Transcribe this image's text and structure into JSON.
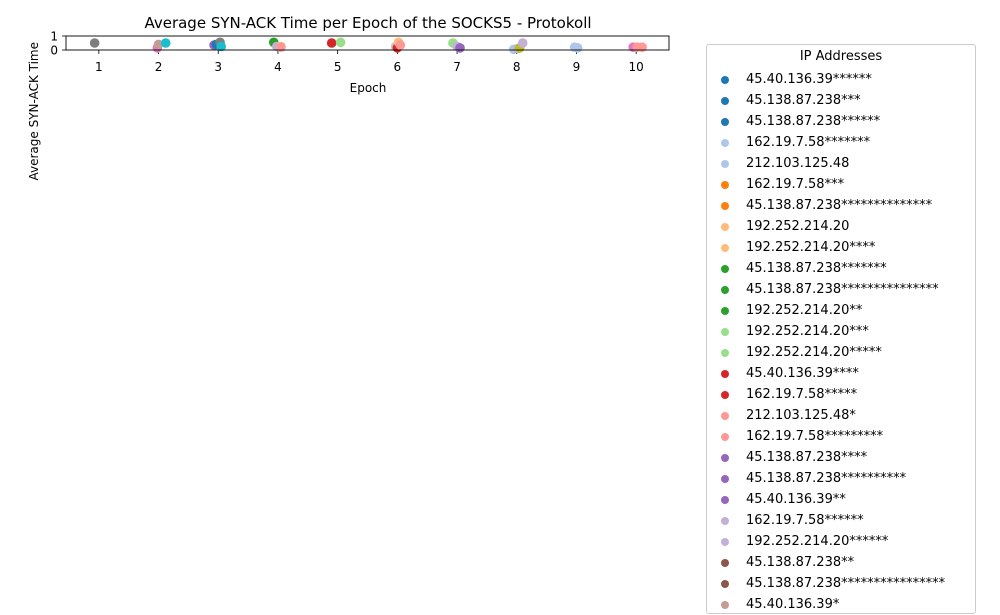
{
  "chart_data": {
    "type": "scatter",
    "title": "Average SYN-ACK Time per Epoch of the SOCKS5 - Protokoll",
    "xlabel": "Epoch",
    "ylabel": "Average SYN-ACK Time",
    "x_ticks": [
      "1",
      "2",
      "3",
      "4",
      "5",
      "6",
      "7",
      "8",
      "9",
      "10"
    ],
    "y_ticks": [
      "0",
      "1"
    ],
    "xlim": [
      0.45,
      10.55
    ],
    "ylim": [
      0,
      1
    ],
    "grid": false,
    "legend": {
      "title": "IP Addresses",
      "placement": "right-outside",
      "entries": [
        {
          "label": "45.40.136.39******",
          "color": "#1f77b4"
        },
        {
          "label": "45.138.87.238***",
          "color": "#1f77b4"
        },
        {
          "label": "45.138.87.238******",
          "color": "#1f77b4"
        },
        {
          "label": "162.19.7.58*******",
          "color": "#aec7e8"
        },
        {
          "label": "212.103.125.48",
          "color": "#aec7e8"
        },
        {
          "label": "162.19.7.58***",
          "color": "#ff7f0e"
        },
        {
          "label": "45.138.87.238**************",
          "color": "#ff7f0e"
        },
        {
          "label": "192.252.214.20",
          "color": "#ffbb78"
        },
        {
          "label": "192.252.214.20****",
          "color": "#ffbb78"
        },
        {
          "label": "45.138.87.238*******",
          "color": "#2ca02c"
        },
        {
          "label": "45.138.87.238***************",
          "color": "#2ca02c"
        },
        {
          "label": "192.252.214.20**",
          "color": "#2ca02c"
        },
        {
          "label": "192.252.214.20***",
          "color": "#98df8a"
        },
        {
          "label": "192.252.214.20*****",
          "color": "#98df8a"
        },
        {
          "label": "45.40.136.39****",
          "color": "#d62728"
        },
        {
          "label": "162.19.7.58*****",
          "color": "#d62728"
        },
        {
          "label": "212.103.125.48*",
          "color": "#ff9896"
        },
        {
          "label": "162.19.7.58*********",
          "color": "#ff9896"
        },
        {
          "label": "45.138.87.238****",
          "color": "#9467bd"
        },
        {
          "label": "45.138.87.238**********",
          "color": "#9467bd"
        },
        {
          "label": "45.40.136.39**",
          "color": "#9467bd"
        },
        {
          "label": "162.19.7.58******",
          "color": "#c5b0d5"
        },
        {
          "label": "192.252.214.20******",
          "color": "#c5b0d5"
        },
        {
          "label": "45.138.87.238**",
          "color": "#8c564b"
        },
        {
          "label": "45.138.87.238****************",
          "color": "#8c564b"
        },
        {
          "label": "45.40.136.39*",
          "color": "#c49c94"
        }
      ]
    },
    "points": [
      {
        "x": 0.93,
        "y": 0.5,
        "color": "#7f7f7f"
      },
      {
        "x": 1.98,
        "y": 0.15,
        "color": "#e377c2"
      },
      {
        "x": 2.0,
        "y": 0.4,
        "color": "#c49c94"
      },
      {
        "x": 2.12,
        "y": 0.5,
        "color": "#17becf"
      },
      {
        "x": 2.93,
        "y": 0.35,
        "color": "#9467bd"
      },
      {
        "x": 2.97,
        "y": 0.4,
        "color": "#1f77b4"
      },
      {
        "x": 3.03,
        "y": 0.55,
        "color": "#7f7f7f"
      },
      {
        "x": 3.05,
        "y": 0.25,
        "color": "#17becf"
      },
      {
        "x": 3.93,
        "y": 0.55,
        "color": "#2ca02c"
      },
      {
        "x": 3.98,
        "y": 0.25,
        "color": "#c5b0d5"
      },
      {
        "x": 4.05,
        "y": 0.25,
        "color": "#ffbb78"
      },
      {
        "x": 4.05,
        "y": 0.2,
        "color": "#ff9896"
      },
      {
        "x": 4.9,
        "y": 0.5,
        "color": "#d62728"
      },
      {
        "x": 5.05,
        "y": 0.55,
        "color": "#98df8a"
      },
      {
        "x": 5.97,
        "y": 0.25,
        "color": "#c7c7c7"
      },
      {
        "x": 6.0,
        "y": 0.15,
        "color": "#d62728"
      },
      {
        "x": 6.02,
        "y": 0.55,
        "color": "#ffbb78"
      },
      {
        "x": 6.05,
        "y": 0.35,
        "color": "#ff9896"
      },
      {
        "x": 6.93,
        "y": 0.5,
        "color": "#98df8a"
      },
      {
        "x": 7.0,
        "y": 0.25,
        "color": "#c5b0d5"
      },
      {
        "x": 7.05,
        "y": 0.15,
        "color": "#9467bd"
      },
      {
        "x": 7.95,
        "y": 0.05,
        "color": "#aec7e8"
      },
      {
        "x": 8.02,
        "y": 0.1,
        "color": "#c5b0d5"
      },
      {
        "x": 8.05,
        "y": 0.15,
        "color": "#bcbd22"
      },
      {
        "x": 8.1,
        "y": 0.5,
        "color": "#c5b0d5"
      },
      {
        "x": 8.97,
        "y": 0.2,
        "color": "#aec7e8"
      },
      {
        "x": 9.02,
        "y": 0.15,
        "color": "#aec7e8"
      },
      {
        "x": 9.95,
        "y": 0.2,
        "color": "#e377c2"
      },
      {
        "x": 10.02,
        "y": 0.2,
        "color": "#ff9896"
      },
      {
        "x": 10.1,
        "y": 0.2,
        "color": "#ff9896"
      }
    ]
  }
}
